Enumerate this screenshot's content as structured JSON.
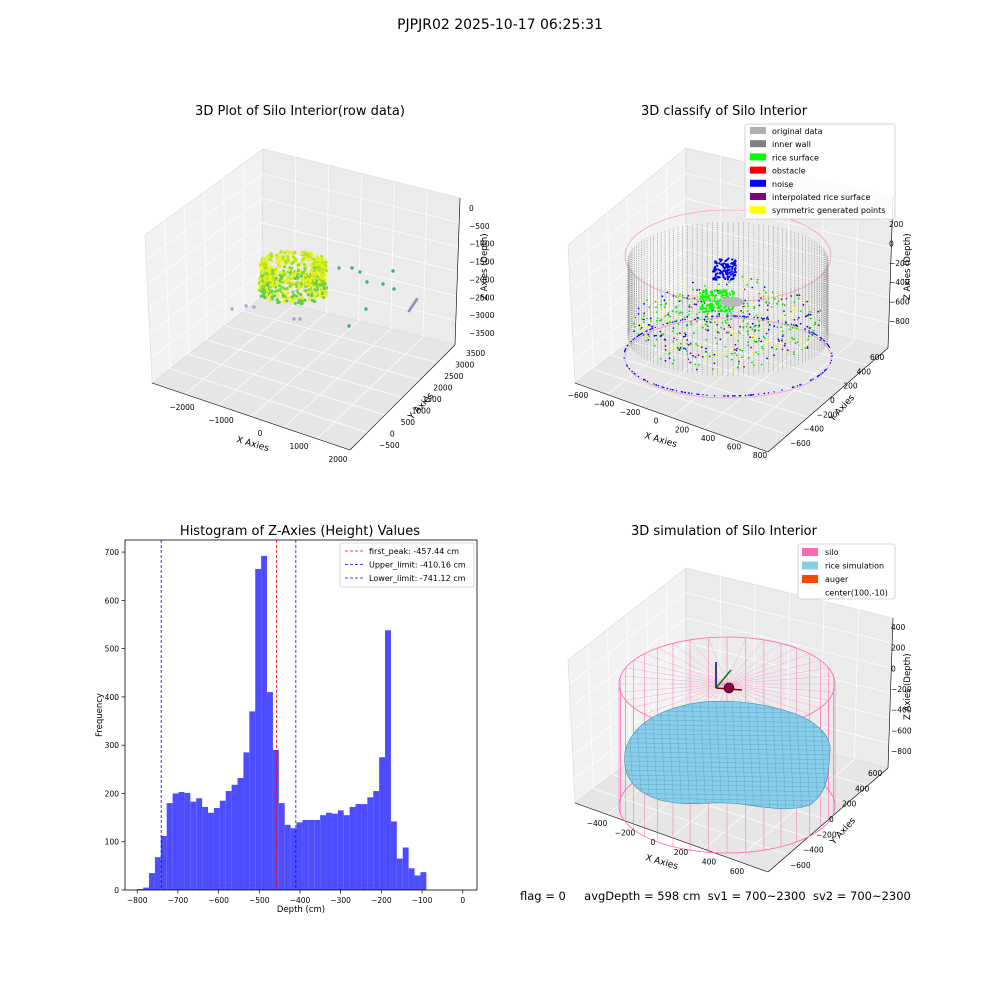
{
  "suptitle": "PJPJR02 2025-10-17 06:25:31",
  "panels": {
    "raw": {
      "title": "3D Plot of Silo Interior(row data)",
      "xlabel": "X Axies",
      "ylabel": "Y Axies",
      "zlabel": "Z Axies (Depth)",
      "xticks": [
        "−2000",
        "−1000",
        "0",
        "1000",
        "2000"
      ],
      "yticks": [
        "−500",
        "0",
        "500",
        "1000",
        "1500",
        "2000",
        "2500",
        "3000",
        "3500"
      ],
      "zticks": [
        "0",
        "−500",
        "−1000",
        "−1500",
        "−2000",
        "−2500",
        "−3000",
        "−3500"
      ]
    },
    "classify": {
      "title": "3D classify of Silo Interior",
      "xlabel": "X Axies",
      "ylabel": "Y Axies",
      "zlabel": "Z Axies (Depth)",
      "xticks": [
        "−600",
        "−400",
        "−200",
        "0",
        "200",
        "400",
        "600",
        "800"
      ],
      "yticks": [
        "−600",
        "−400",
        "−200",
        "0",
        "200",
        "400",
        "600"
      ],
      "zticks": [
        "200",
        "0",
        "−200",
        "−400",
        "−600",
        "−800"
      ],
      "legend": [
        {
          "label": "original data",
          "color": "#b0b0b0"
        },
        {
          "label": "inner wall",
          "color": "#808080"
        },
        {
          "label": "rice surface",
          "color": "#00ff00"
        },
        {
          "label": "obstacle",
          "color": "#ff0000"
        },
        {
          "label": "noise",
          "color": "#0000ff"
        },
        {
          "label": "interpolated rice surface",
          "color": "#800080"
        },
        {
          "label": "symmetric generated points",
          "color": "#ffff00"
        }
      ]
    },
    "simulation": {
      "title": "3D simulation of Silo Interior",
      "xlabel": "X Axies",
      "ylabel": "Y Axies",
      "zlabel": "Z Axies (Depth)",
      "xticks": [
        "−400",
        "−200",
        "0",
        "200",
        "400",
        "600"
      ],
      "yticks": [
        "−600",
        "−400",
        "−200",
        "0",
        "200",
        "400",
        "600"
      ],
      "zticks": [
        "400",
        "200",
        "0",
        "−200",
        "−400",
        "−600",
        "−800"
      ],
      "legend": [
        {
          "label": "silo",
          "color": "#ff69b4"
        },
        {
          "label": "rice simulation",
          "color": "#87ceeb"
        },
        {
          "label": "auger",
          "color": "#ff4500"
        },
        {
          "label": "center(100,-10)",
          "color": ""
        }
      ]
    }
  },
  "chart_data": {
    "type": "histogram",
    "title": "Histogram of Z-Axies (Height) Values",
    "xlabel": "Depth (cm)",
    "ylabel": "Frequency",
    "xlim": [
      -830,
      35
    ],
    "ylim": [
      0,
      725
    ],
    "xticks": [
      -800,
      -700,
      -600,
      -500,
      -400,
      -300,
      -200,
      -100,
      0
    ],
    "xtick_labels": [
      "−800",
      "−700",
      "−600",
      "−500",
      "−400",
      "−300",
      "−200",
      "−100",
      "0"
    ],
    "yticks": [
      0,
      100,
      200,
      300,
      400,
      500,
      600,
      700
    ],
    "bar_color": "#4d4dff",
    "bin_start": -800,
    "bin_width": 14.5,
    "values": [
      2,
      5,
      35,
      68,
      112,
      180,
      200,
      203,
      201,
      183,
      190,
      172,
      160,
      170,
      185,
      205,
      218,
      232,
      285,
      370,
      665,
      692,
      410,
      290,
      180,
      135,
      128,
      140,
      145,
      145,
      145,
      155,
      160,
      158,
      165,
      155,
      172,
      178,
      178,
      192,
      205,
      275,
      538,
      142,
      65,
      88,
      45,
      30,
      37
    ],
    "lines": [
      {
        "label": "first_peak: -457.44 cm",
        "x": -457.44,
        "color": "#ff0000"
      },
      {
        "label": "Upper_limit: -410.16 cm",
        "x": -410.16,
        "color": "#0000ff"
      },
      {
        "label": "Lower_limit: -741.12 cm",
        "x": -741.12,
        "color": "#0000ff"
      }
    ]
  },
  "status": {
    "flag": "flag = 0",
    "avg_depth": "avgDepth = 598 cm",
    "sv1": "sv1 = 700~2300",
    "sv2": "sv2 = 700~2300"
  }
}
